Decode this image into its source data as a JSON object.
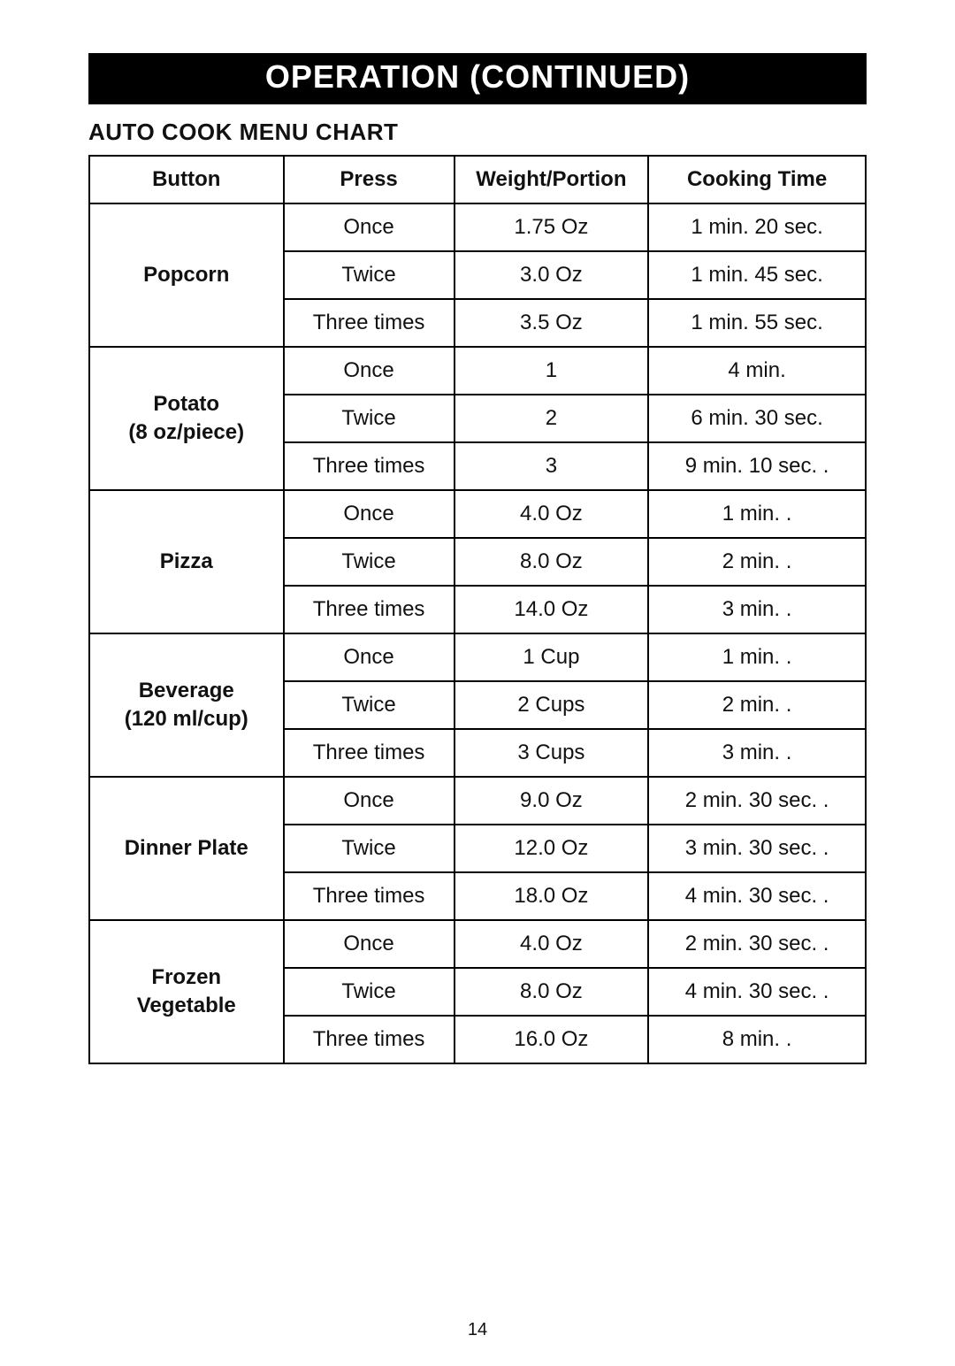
{
  "banner": "OPERATION (CONTINUED)",
  "subtitle": "AUTO COOK MENU CHART",
  "page_number": "14",
  "table": {
    "headers": {
      "button": "Button",
      "press": "Press",
      "weight": "Weight/Portion",
      "time": "Cooking Time"
    },
    "groups": [
      {
        "button_html": "Popcorn",
        "rows": [
          {
            "press": "Once",
            "weight": "1.75 Oz",
            "time": "1 min. 20 sec."
          },
          {
            "press": "Twice",
            "weight": "3.0 Oz",
            "time": "1 min. 45 sec."
          },
          {
            "press": "Three times",
            "weight": "3.5 Oz",
            "time": "1 min. 55 sec."
          }
        ]
      },
      {
        "button_html": "Potato<br>(8 oz/piece)",
        "rows": [
          {
            "press": "Once",
            "weight": "1",
            "time": "4 min."
          },
          {
            "press": "Twice",
            "weight": "2",
            "time": "6 min. 30 sec."
          },
          {
            "press": "Three times",
            "weight": "3",
            "time": "9 min. 10 sec. ."
          }
        ]
      },
      {
        "button_html": "Pizza",
        "rows": [
          {
            "press": "Once",
            "weight": "4.0 Oz",
            "time": "1 min. ."
          },
          {
            "press": "Twice",
            "weight": "8.0 Oz",
            "time": "2 min. ."
          },
          {
            "press": "Three times",
            "weight": "14.0 Oz",
            "time": "3 min. ."
          }
        ]
      },
      {
        "button_html": "Beverage<br>(120 ml/cup)",
        "rows": [
          {
            "press": "Once",
            "weight": "1 Cup",
            "time": "1 min. ."
          },
          {
            "press": "Twice",
            "weight": "2 Cups",
            "time": "2 min. ."
          },
          {
            "press": "Three times",
            "weight": "3 Cups",
            "time": "3 min. ."
          }
        ]
      },
      {
        "button_html": "Dinner Plate",
        "rows": [
          {
            "press": "Once",
            "weight": "9.0 Oz",
            "time": "2 min. 30 sec. ."
          },
          {
            "press": "Twice",
            "weight": "12.0 Oz",
            "time": "3 min. 30 sec. ."
          },
          {
            "press": "Three times",
            "weight": "18.0 Oz",
            "time": "4 min. 30 sec. ."
          }
        ]
      },
      {
        "button_html": "Frozen<br>Vegetable",
        "rows": [
          {
            "press": "Once",
            "weight": "4.0 Oz",
            "time": "2 min. 30 sec. ."
          },
          {
            "press": "Twice",
            "weight": "8.0 Oz",
            "time": "4 min. 30 sec. ."
          },
          {
            "press": "Three times",
            "weight": "16.0 Oz",
            "time": "8 min. ."
          }
        ]
      }
    ]
  }
}
